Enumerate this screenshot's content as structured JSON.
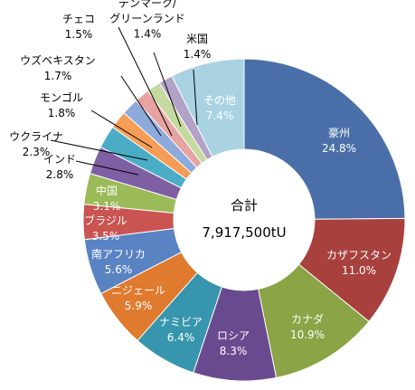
{
  "chart_data": {
    "type": "pie",
    "donut": true,
    "legend": "none",
    "center_label": {
      "title": "合計",
      "value": "7,917,500tU"
    },
    "slices": [
      {
        "label": "豪州",
        "value": 24.8,
        "pct_text": "24.8%",
        "color": "#4a6fa8"
      },
      {
        "label": "カザフスタン",
        "value": 11.0,
        "pct_text": "11.0%",
        "color": "#a8403d"
      },
      {
        "label": "カナダ",
        "value": 10.9,
        "pct_text": "10.9%",
        "color": "#8aa446"
      },
      {
        "label": "ロシア",
        "value": 8.3,
        "pct_text": "8.3%",
        "color": "#6a4a8f"
      },
      {
        "label": "ナミビア",
        "value": 6.4,
        "pct_text": "6.4%",
        "color": "#3795ad"
      },
      {
        "label": "ニジェール",
        "value": 5.9,
        "pct_text": "5.9%",
        "color": "#e07a2f"
      },
      {
        "label": "南アフリカ",
        "value": 5.6,
        "pct_text": "5.6%",
        "color": "#5a83c4"
      },
      {
        "label": "ブラジル",
        "value": 3.5,
        "pct_text": "3.5%",
        "color": "#c95451"
      },
      {
        "label": "中国",
        "value": 3.1,
        "pct_text": "3.1%",
        "color": "#9bbb59"
      },
      {
        "label": "インド",
        "value": 2.8,
        "pct_text": "2.8%",
        "color": "#7e5fa3"
      },
      {
        "label": "ウクライナ",
        "value": 2.3,
        "pct_text": "2.3%",
        "color": "#4bacc6"
      },
      {
        "label": "モンゴル",
        "value": 1.8,
        "pct_text": "1.8%",
        "color": "#f59d56"
      },
      {
        "label": "ウズベキスタン",
        "value": 1.7,
        "pct_text": "1.7%",
        "color": "#8eaadb"
      },
      {
        "label": "チェコ",
        "value": 1.5,
        "pct_text": "1.5%",
        "color": "#e6a3a1"
      },
      {
        "label": "デンマーク/\nグリーンランド",
        "value": 1.4,
        "pct_text": "1.4%",
        "color": "#c6d9a0"
      },
      {
        "label": "米国",
        "value": 1.4,
        "pct_text": "1.4%",
        "color": "#b2a2c7"
      },
      {
        "label": "その他",
        "value": 7.4,
        "pct_text": "7.4%",
        "color": "#a9d3e2"
      }
    ]
  }
}
